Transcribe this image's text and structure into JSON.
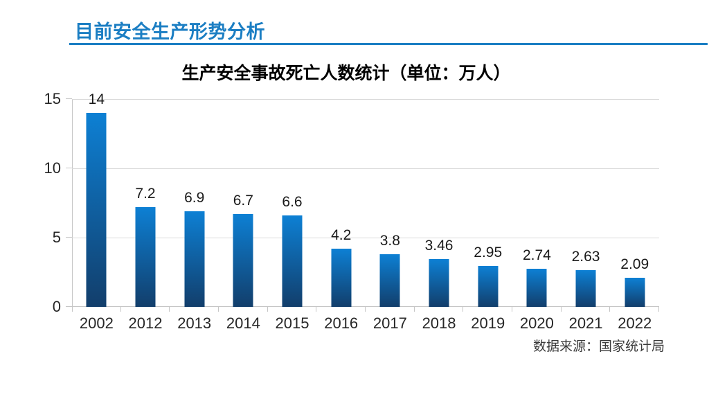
{
  "header": {
    "title": "目前安全生产形势分析"
  },
  "source": {
    "text": "数据来源：国家统计局"
  },
  "colors": {
    "accent": "#1b7ec3",
    "bar_gradient_top": "#0d80d4",
    "bar_gradient_bottom": "#123e6b",
    "gridline": "#d9d9d9"
  },
  "chart_data": {
    "type": "bar",
    "title": "生产安全事故死亡人数统计（单位：万人）",
    "categories": [
      "2002",
      "2012",
      "2013",
      "2014",
      "2015",
      "2016",
      "2017",
      "2018",
      "2019",
      "2020",
      "2021",
      "2022"
    ],
    "values": [
      14,
      7.2,
      6.9,
      6.7,
      6.6,
      4.2,
      3.8,
      3.46,
      2.95,
      2.74,
      2.63,
      2.09
    ],
    "value_labels": [
      "14",
      "7.2",
      "6.9",
      "6.7",
      "6.6",
      "4.2",
      "3.8",
      "3.46",
      "2.95",
      "2.74",
      "2.63",
      "2.09"
    ],
    "xlabel": "",
    "ylabel": "",
    "ylim": [
      0,
      15
    ],
    "yticks": [
      0,
      5,
      10,
      15
    ],
    "grid": true,
    "legend": false
  }
}
